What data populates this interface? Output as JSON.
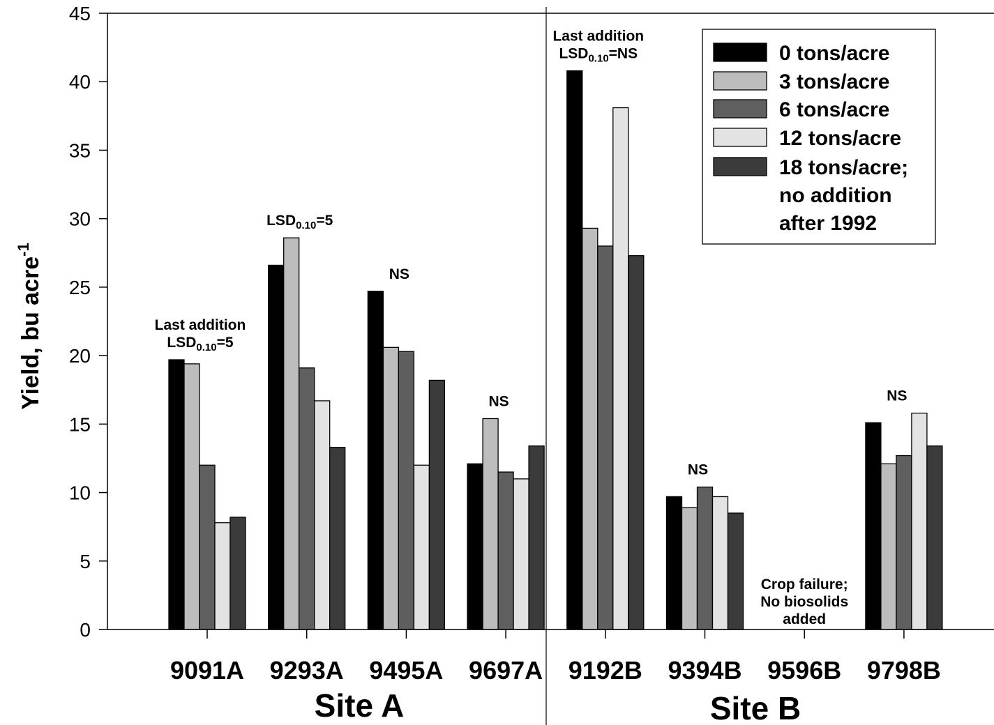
{
  "chart_data": {
    "type": "bar",
    "ylabel_main": "Yield, bu acre",
    "ylabel_sup": "-1",
    "ylim": [
      0,
      45
    ],
    "yticks": [
      0,
      5,
      10,
      15,
      20,
      25,
      30,
      35,
      40,
      45
    ],
    "grid": false,
    "legend_position": "top-right",
    "categories": [
      "9091A",
      "9293A",
      "9495A",
      "9697A",
      "9192B",
      "9394B",
      "9596B",
      "9798B"
    ],
    "groups": [
      {
        "label": "Site A",
        "categories": [
          "9091A",
          "9293A",
          "9495A",
          "9697A"
        ]
      },
      {
        "label": "Site B",
        "categories": [
          "9192B",
          "9394B",
          "9596B",
          "9798B"
        ]
      }
    ],
    "series": [
      {
        "name": "0 tons/acre",
        "color": "#000000",
        "values": [
          19.7,
          26.6,
          24.7,
          12.1,
          40.8,
          9.7,
          null,
          15.1
        ]
      },
      {
        "name": "3 tons/acre",
        "color": "#bdbdbd",
        "values": [
          19.4,
          28.6,
          20.6,
          15.4,
          29.3,
          8.9,
          null,
          12.1
        ]
      },
      {
        "name": "6 tons/acre",
        "color": "#5f5f5f",
        "values": [
          12.0,
          19.1,
          20.3,
          11.5,
          28.0,
          10.4,
          null,
          12.7
        ]
      },
      {
        "name": "12 tons/acre",
        "color": "#e3e3e3",
        "values": [
          7.8,
          16.7,
          12.0,
          11.0,
          38.1,
          9.7,
          null,
          15.8
        ]
      },
      {
        "name_lines": [
          "18 tons/acre;",
          "no addition",
          "after 1992"
        ],
        "color": "#3b3b3b",
        "values": [
          8.2,
          13.3,
          18.2,
          13.4,
          27.3,
          8.5,
          null,
          13.4
        ]
      }
    ],
    "annotations": [
      {
        "category": "9091A",
        "lines": [
          "Last addition",
          "LSD|0.10|=5"
        ]
      },
      {
        "category": "9293A",
        "lines": [
          "LSD|0.10|=5"
        ]
      },
      {
        "category": "9495A",
        "lines": [
          "NS"
        ]
      },
      {
        "category": "9697A",
        "lines": [
          "NS"
        ]
      },
      {
        "category": "9192B",
        "lines": [
          "Last addition",
          "LSD|0.10|=NS"
        ]
      },
      {
        "category": "9394B",
        "lines": [
          "NS"
        ]
      },
      {
        "category": "9596B",
        "lines": [
          "Crop failure;",
          "No biosolids",
          "added"
        ]
      },
      {
        "category": "9798B",
        "lines": [
          "NS"
        ]
      }
    ]
  }
}
